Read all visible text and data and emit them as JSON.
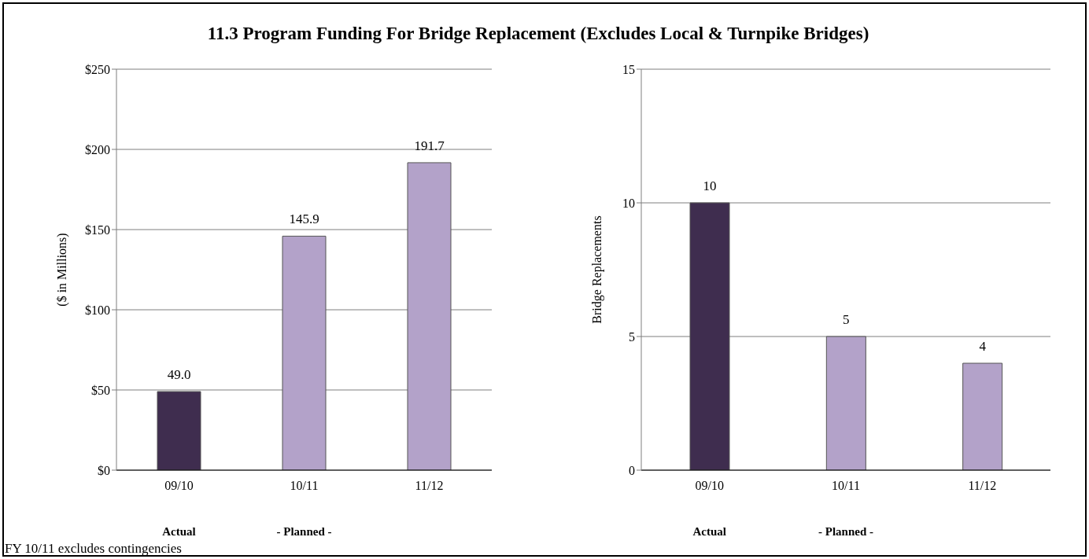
{
  "chart_data": [
    {
      "type": "bar",
      "title": "11.3 Program Funding For Bridge Replacement (Excludes Local & Turnpike Bridges)",
      "ylabel": "($ in Millions)",
      "categories": [
        "09/10",
        "10/11",
        "11/12"
      ],
      "values": [
        49.0,
        145.9,
        191.7
      ],
      "colors": [
        "#3f2d4f",
        "#b3a2c9",
        "#b3a2c9"
      ],
      "value_labels": [
        "49.0",
        "145.9",
        "191.7"
      ],
      "ylim": [
        0,
        250
      ],
      "yticks": [
        {
          "value": 0,
          "label": "$0"
        },
        {
          "value": 50,
          "label": "$50"
        },
        {
          "value": 100,
          "label": "$100"
        },
        {
          "value": 150,
          "label": "$150"
        },
        {
          "value": 200,
          "label": "$200"
        },
        {
          "value": 250,
          "label": "$250"
        }
      ],
      "grid": "y",
      "legend": false,
      "annotations": [
        "Actual",
        "- Planned -",
        "FY 10/11 excludes contingencies"
      ]
    },
    {
      "type": "bar",
      "ylabel": "Bridge Replacements",
      "categories": [
        "09/10",
        "10/11",
        "11/12"
      ],
      "values": [
        10,
        5,
        4
      ],
      "colors": [
        "#3f2d4f",
        "#b3a2c9",
        "#b3a2c9"
      ],
      "data_labels": true,
      "ylim": [
        0,
        15
      ],
      "yticks": [
        0,
        5,
        10,
        15
      ],
      "grid": "y",
      "legend": false,
      "annotations": [
        "Actual",
        "- Planned -"
      ]
    }
  ]
}
